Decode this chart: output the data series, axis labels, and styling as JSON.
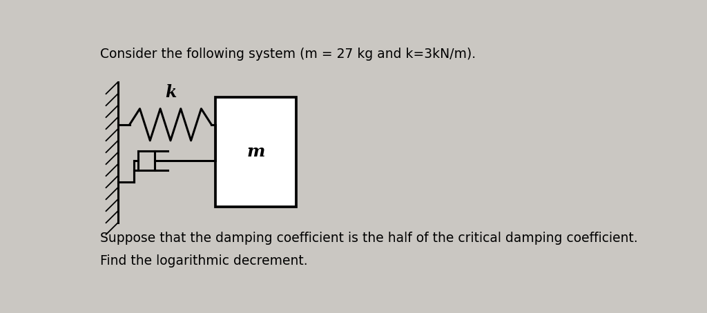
{
  "title_text": "Consider the following system (m = 27 kg and k=3kN/m).",
  "label_k": "k",
  "label_m": "m",
  "line1": "Suppose that the damping coefficient is the half of the critical damping coefficient.",
  "line2": "Find the logarithmic decrement.",
  "bg_color": "#cac7c2",
  "text_color": "#000000",
  "title_fontsize": 13.5,
  "body_fontsize": 13.5
}
